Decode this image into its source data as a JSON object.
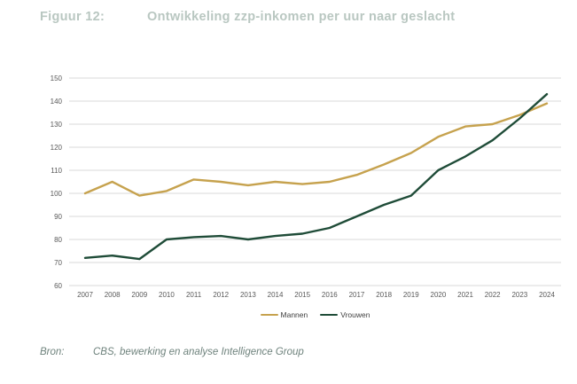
{
  "figure": {
    "label": "Figuur 12:",
    "title": "Ontwikkeling zzp-inkomen per uur naar geslacht"
  },
  "source": {
    "label": "Bron:",
    "text": "CBS, bewerking en analyse Intelligence Group"
  },
  "colors": {
    "mannen_line": "#C6A24E",
    "vrouwen_line": "#1F4C38",
    "title_text": "#B9C7C1",
    "axis_text": "#595959",
    "gridline": "#D9D9D9",
    "legend_text": "#404040",
    "source_text": "#6F837D"
  },
  "chart_data": {
    "type": "line",
    "x": [
      2007,
      2008,
      2009,
      2010,
      2011,
      2012,
      2013,
      2014,
      2015,
      2016,
      2017,
      2018,
      2019,
      2020,
      2021,
      2022,
      2023,
      2024
    ],
    "series": [
      {
        "name": "Mannen",
        "color": "#C6A24E",
        "values": [
          100,
          105,
          99,
          101,
          106,
          105,
          103.5,
          105,
          104,
          105,
          108,
          112.5,
          117.5,
          124.5,
          129,
          130,
          134,
          139
        ]
      },
      {
        "name": "Vrouwen",
        "color": "#1F4C38",
        "values": [
          72,
          73,
          71.5,
          80,
          81,
          81.5,
          80,
          81.5,
          82.5,
          85,
          90,
          95,
          99,
          110,
          116,
          123,
          132.5,
          143
        ]
      }
    ],
    "ylim": [
      60,
      150
    ],
    "ytick_step": 10,
    "grid": true,
    "legend_position": "bottom"
  }
}
